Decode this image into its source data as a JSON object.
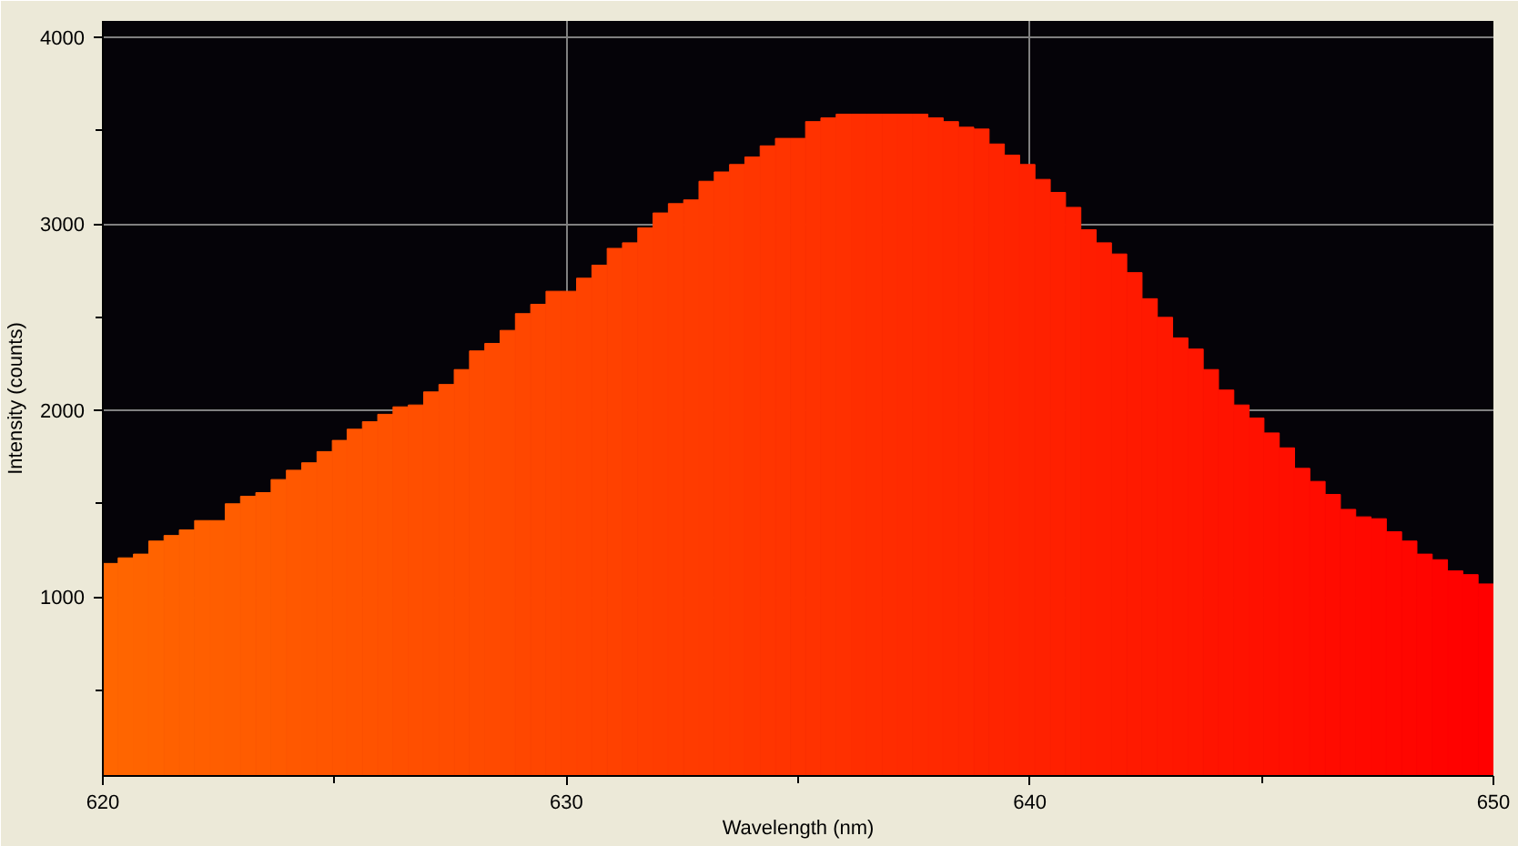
{
  "chart_data": {
    "type": "histogram",
    "xlabel": "Wavelength (nm)",
    "ylabel": "Intensity (counts)",
    "bins": [
      620.0,
      620.33,
      620.66,
      620.99,
      621.32,
      621.65,
      621.98,
      622.31,
      622.64,
      622.97,
      623.3,
      623.63,
      623.96,
      624.29,
      624.62,
      624.95,
      625.27,
      625.6,
      625.93,
      626.26,
      626.59,
      626.92,
      627.25,
      627.58,
      627.91,
      628.24,
      628.57,
      628.9,
      629.23,
      629.56,
      629.89,
      630.22,
      630.55,
      630.88,
      631.21,
      631.54,
      631.87,
      632.2,
      632.53,
      632.86,
      633.19,
      633.52,
      633.85,
      634.18,
      634.51,
      634.84,
      635.16,
      635.49,
      635.82,
      636.15,
      636.48,
      636.81,
      637.14,
      637.47,
      637.8,
      638.13,
      638.46,
      638.79,
      639.12,
      639.45,
      639.78,
      640.11,
      640.44,
      640.77,
      641.1,
      641.43,
      641.76,
      642.09,
      642.42,
      642.75,
      643.08,
      643.41,
      643.74,
      644.07,
      644.4,
      644.73,
      645.05,
      645.38,
      645.71,
      646.04,
      646.37,
      646.7,
      647.03,
      647.36,
      647.69,
      648.02,
      648.35,
      648.68,
      649.01,
      649.34,
      649.67,
      650.0
    ],
    "values": [
      1180,
      1210,
      1230,
      1300,
      1330,
      1360,
      1410,
      1410,
      1500,
      1540,
      1560,
      1630,
      1680,
      1720,
      1780,
      1840,
      1900,
      1940,
      1980,
      2020,
      2030,
      2100,
      2140,
      2220,
      2320,
      2360,
      2430,
      2520,
      2570,
      2640,
      2640,
      2710,
      2780,
      2870,
      2900,
      2980,
      3060,
      3110,
      3130,
      3230,
      3280,
      3320,
      3360,
      3420,
      3460,
      3460,
      3550,
      3570,
      3590,
      3590,
      3590,
      3590,
      3590,
      3590,
      3570,
      3550,
      3520,
      3510,
      3430,
      3370,
      3320,
      3240,
      3170,
      3090,
      2970,
      2900,
      2840,
      2740,
      2600,
      2500,
      2390,
      2330,
      2220,
      2110,
      2030,
      1960,
      1880,
      1800,
      1690,
      1620,
      1550,
      1470,
      1430,
      1420,
      1350,
      1300,
      1230,
      1200,
      1140,
      1120,
      1070
    ],
    "colors": [
      "#ff6600",
      "#ff6500",
      "#ff6400",
      "#ff6300",
      "#ff6100",
      "#ff6000",
      "#ff5f00",
      "#ff5e00",
      "#ff5d00",
      "#ff5c00",
      "#ff5b00",
      "#ff5a00",
      "#ff5800",
      "#ff5700",
      "#ff5600",
      "#ff5500",
      "#ff5400",
      "#ff5300",
      "#ff5200",
      "#ff5000",
      "#ff4f00",
      "#ff4e00",
      "#ff4d00",
      "#ff4c00",
      "#ff4b00",
      "#ff4a00",
      "#ff4900",
      "#ff4700",
      "#ff4600",
      "#ff4500",
      "#ff4400",
      "#ff4300",
      "#ff4200",
      "#ff4100",
      "#ff3f00",
      "#ff3e00",
      "#ff3d00",
      "#ff3c00",
      "#ff3b00",
      "#ff3a00",
      "#ff3900",
      "#ff3800",
      "#ff3600",
      "#ff3500",
      "#ff3400",
      "#ff3300",
      "#ff3200",
      "#ff3100",
      "#ff3000",
      "#ff2e00",
      "#ff2d00",
      "#ff2c00",
      "#ff2b00",
      "#ff2a00",
      "#ff2900",
      "#ff2800",
      "#ff2700",
      "#ff2500",
      "#ff2400",
      "#ff2300",
      "#ff2200",
      "#ff2100",
      "#ff2000",
      "#ff1f00",
      "#ff1d00",
      "#ff1c00",
      "#ff1b00",
      "#ff1a00",
      "#ff1900",
      "#ff1800",
      "#ff1700",
      "#ff1600",
      "#ff1400",
      "#ff1300",
      "#ff1200",
      "#ff1100",
      "#ff1000",
      "#ff0f00",
      "#ff0e00",
      "#ff0c00",
      "#ff0b00",
      "#ff0a00",
      "#ff0900",
      "#ff0800",
      "#ff0700",
      "#ff0600",
      "#ff0500",
      "#ff0300",
      "#ff0200",
      "#ff0100",
      "#ff0000"
    ],
    "xlim": [
      620,
      650
    ],
    "xticks": [
      620,
      {
        "value": 625,
        "label": null
      },
      630,
      {
        "value": 635,
        "label": null
      },
      640,
      {
        "value": 645,
        "label": null
      },
      650
    ],
    "ylim": [
      40,
      4090
    ],
    "yticks": [
      {
        "value": 500,
        "label": null
      },
      1000,
      {
        "value": 1500,
        "label": null
      },
      2000,
      {
        "value": 2500,
        "label": null
      },
      3000,
      {
        "value": 3500,
        "label": null
      },
      4000
    ],
    "grid": true
  }
}
